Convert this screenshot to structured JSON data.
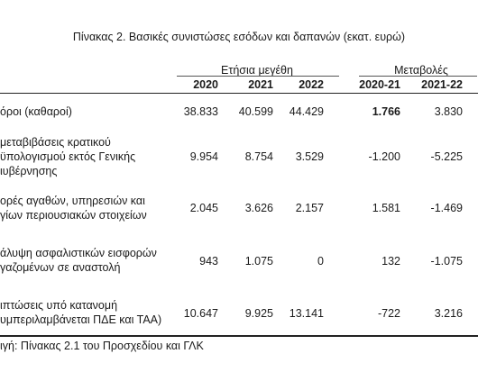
{
  "title": "Πίνακας 2. Βασικές συνιστώσες εσόδων και δαπανών (εκατ. ευρώ)",
  "column_groups": {
    "annual": "Ετήσια μεγέθη",
    "changes": "Μεταβολές"
  },
  "columns": [
    "2020",
    "2021",
    "2022",
    "2020-21",
    "2021-22"
  ],
  "rows": [
    {
      "label_lines": [
        "όροι (καθαροί)"
      ],
      "values": [
        "38.833",
        "40.599",
        "44.429",
        "1.766",
        "3.830"
      ]
    },
    {
      "label_lines": [
        "μεταβιβάσεις κρατικού",
        "ϋπολογισμού εκτός Γενικής",
        "ιυβέρνησης"
      ],
      "values": [
        "9.954",
        "8.754",
        "3.529",
        "-1.200",
        "-5.225"
      ]
    },
    {
      "label_lines": [
        "ορές αγαθών, υπηρεσιών και",
        "γίων περιουσιακών στοιχείων"
      ],
      "values": [
        "2.045",
        "3.626",
        "2.157",
        "1.581",
        "-1.469"
      ]
    },
    {
      "label_lines": [
        "άλυψη ασφαλιστικών εισφορών",
        "γαζομένων σε αναστολή"
      ],
      "values": [
        "943",
        "1.075",
        "0",
        "132",
        "-1.075"
      ]
    },
    {
      "label_lines": [
        "ιπτώσεις υπό κατανομή",
        "υμπεριλαμβάνεται ΠΔΕ και ΤΑΑ)"
      ],
      "values": [
        "10.647",
        "9.925",
        "13.141",
        "-722",
        "3.216"
      ]
    }
  ],
  "source": "ιγή: Πίνακας 2.1 του Προσχεδίου και ΓΛΚ"
}
